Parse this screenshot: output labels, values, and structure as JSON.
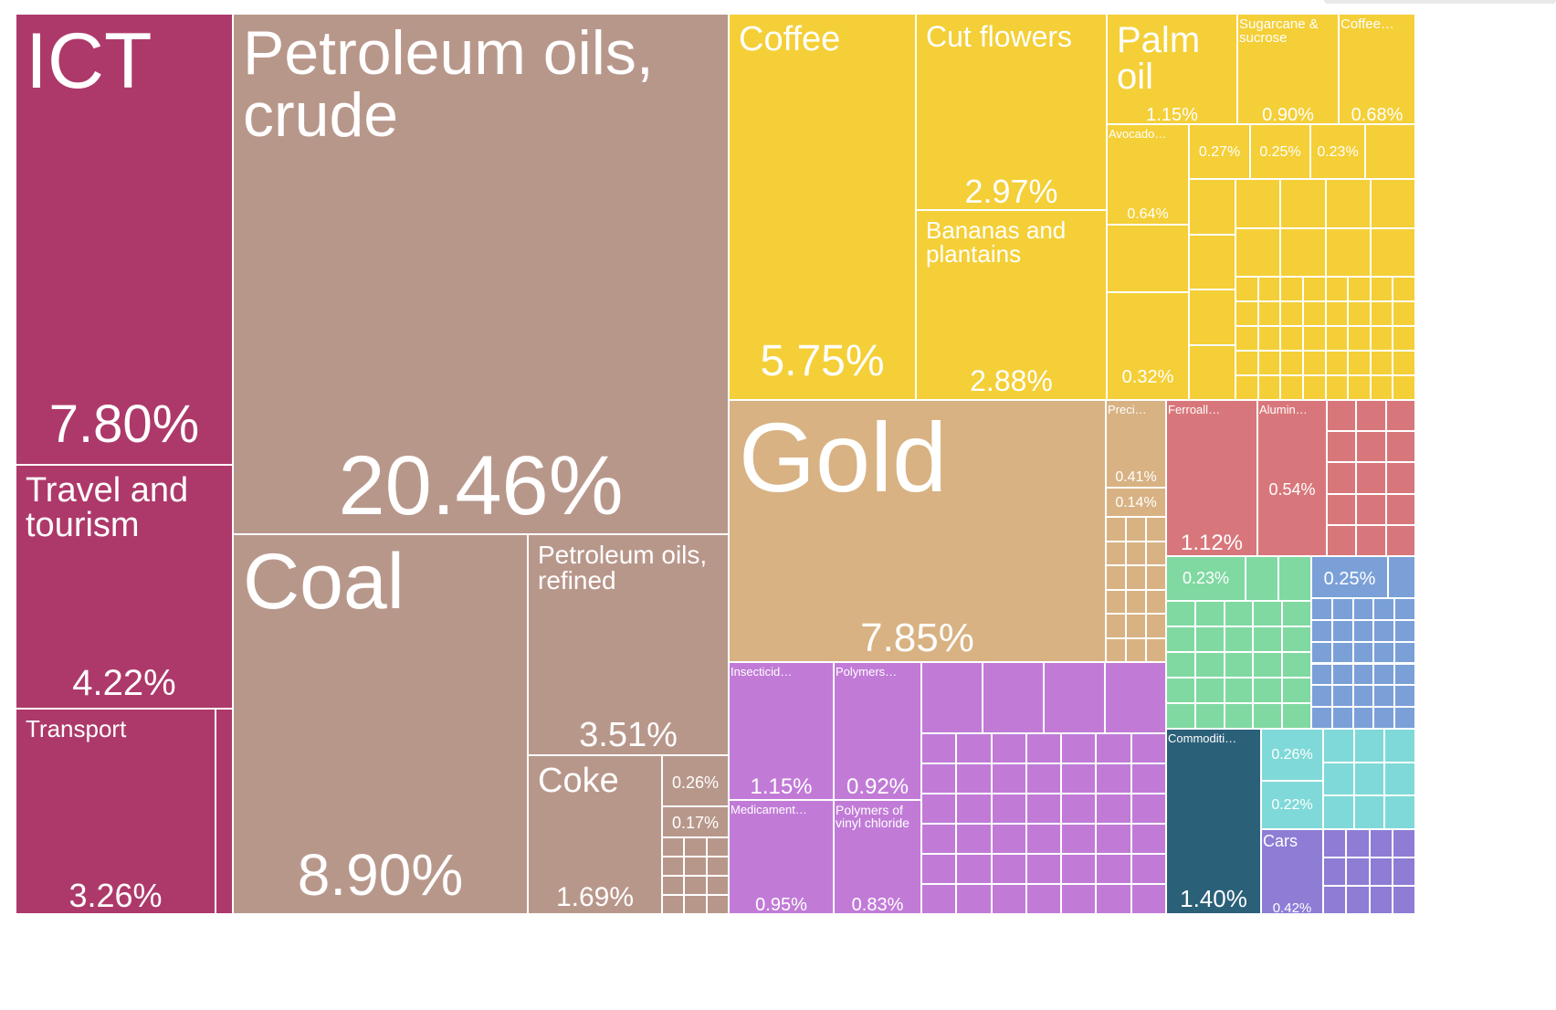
{
  "chart_data": {
    "type": "treemap",
    "colors": {
      "services": "#ad396a",
      "minerals": "#b8978b",
      "agriculture": "#f4cf37",
      "stone": "#d8b283",
      "chemicals": "#c17bd7",
      "metals": "#d8777b",
      "textiles": "#80d9a1",
      "machinery": "#7ba0d8",
      "other": "#2b6079",
      "electronics": "#7fd9d8",
      "vehicles": "#8e7cd5"
    },
    "tiles": [
      {
        "name": "ICT",
        "share": "7.80%",
        "cat": "services"
      },
      {
        "name": "Travel and\ntourism",
        "share": "4.22%",
        "cat": "services"
      },
      {
        "name": "Transport",
        "share": "3.26%",
        "cat": "services"
      },
      {
        "name": "",
        "share": "",
        "cat": "services"
      },
      {
        "name": "Petroleum oils,\ncrude",
        "share": "20.46%",
        "cat": "minerals"
      },
      {
        "name": "Coal",
        "share": "8.90%",
        "cat": "minerals"
      },
      {
        "name": "Petroleum oils,\nrefined",
        "share": "3.51%",
        "cat": "minerals"
      },
      {
        "name": "Coke",
        "share": "1.69%",
        "cat": "minerals"
      },
      {
        "name": "",
        "share": "0.26%",
        "cat": "minerals"
      },
      {
        "name": "",
        "share": "0.17%",
        "cat": "minerals"
      },
      {
        "name": "Coffee",
        "share": "5.75%",
        "cat": "agriculture"
      },
      {
        "name": "Cut flowers",
        "share": "2.97%",
        "cat": "agriculture"
      },
      {
        "name": "Bananas and\nplantains",
        "share": "2.88%",
        "cat": "agriculture"
      },
      {
        "name": "Palm\noil",
        "share": "1.15%",
        "cat": "agriculture"
      },
      {
        "name": "Sugarcane &\nsucrose",
        "share": "0.90%",
        "cat": "agriculture"
      },
      {
        "name": "Coffee…",
        "share": "0.68%",
        "cat": "agriculture"
      },
      {
        "name": "Avocado…",
        "share": "0.64%",
        "cat": "agriculture"
      },
      {
        "name": "",
        "share": "0.32%",
        "cat": "agriculture"
      },
      {
        "name": "",
        "share": "0.27%",
        "cat": "agriculture"
      },
      {
        "name": "",
        "share": "0.25%",
        "cat": "agriculture"
      },
      {
        "name": "",
        "share": "0.23%",
        "cat": "agriculture"
      },
      {
        "name": "Gold",
        "share": "7.85%",
        "cat": "stone"
      },
      {
        "name": "Preci…",
        "share": "0.41%",
        "cat": "stone"
      },
      {
        "name": "",
        "share": "0.14%",
        "cat": "stone"
      },
      {
        "name": "Insecticid…",
        "share": "1.15%",
        "cat": "chemicals"
      },
      {
        "name": "Medicament…",
        "share": "0.95%",
        "cat": "chemicals"
      },
      {
        "name": "Polymers…",
        "share": "0.92%",
        "cat": "chemicals"
      },
      {
        "name": "Polymers of\nvinyl chloride",
        "share": "0.83%",
        "cat": "chemicals"
      },
      {
        "name": "Ferroall…",
        "share": "1.12%",
        "cat": "metals"
      },
      {
        "name": "Alumin…",
        "share": "0.54%",
        "cat": "metals"
      },
      {
        "name": "",
        "share": "0.23%",
        "cat": "textiles"
      },
      {
        "name": "",
        "share": "0.25%",
        "cat": "machinery"
      },
      {
        "name": "Commoditi…",
        "share": "1.40%",
        "cat": "other"
      },
      {
        "name": "",
        "share": "0.26%",
        "cat": "electronics"
      },
      {
        "name": "",
        "share": "0.22%",
        "cat": "electronics"
      },
      {
        "name": "Cars",
        "share": "0.42%",
        "cat": "vehicles"
      }
    ]
  }
}
